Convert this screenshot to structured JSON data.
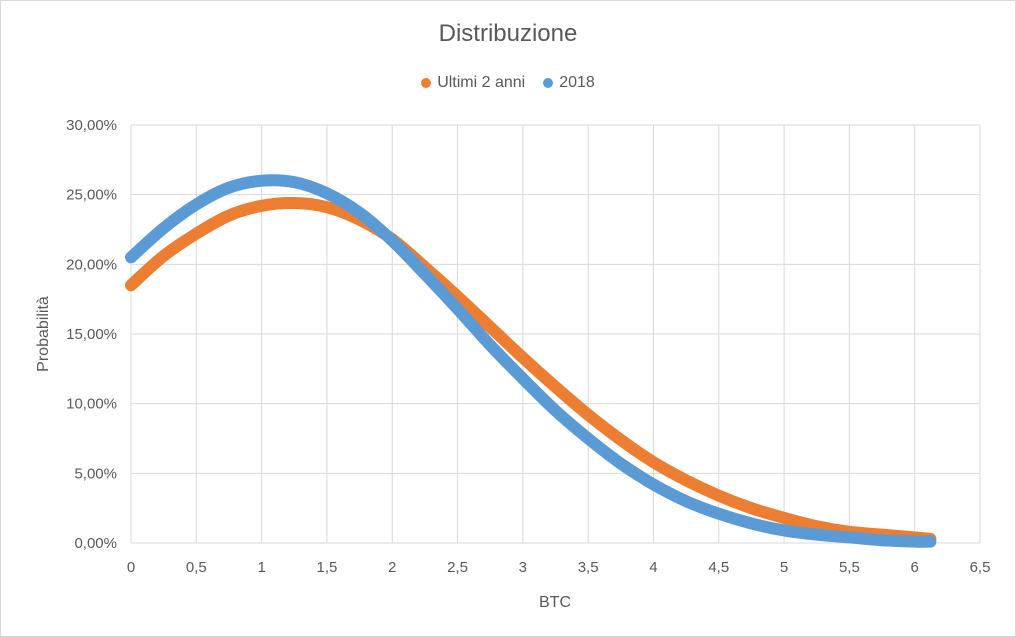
{
  "chart_data": {
    "type": "line",
    "title": "Distribuzione",
    "xlabel": "BTC",
    "ylabel": "Probabilità",
    "xlim": [
      0,
      6.5
    ],
    "ylim": [
      0,
      0.3
    ],
    "x_ticks": [
      "0",
      "0,5",
      "1",
      "1,5",
      "2",
      "2,5",
      "3",
      "3,5",
      "4",
      "4,5",
      "5",
      "5,5",
      "6",
      "6,5"
    ],
    "y_ticks": [
      "0,00%",
      "5,00%",
      "10,00%",
      "15,00%",
      "20,00%",
      "25,00%",
      "30,00%"
    ],
    "grid": true,
    "legend_position": "top",
    "x": [
      0,
      0.25,
      0.5,
      0.75,
      1,
      1.25,
      1.5,
      1.75,
      2,
      2.25,
      2.5,
      2.75,
      3,
      3.25,
      3.5,
      3.75,
      4,
      4.25,
      4.5,
      4.75,
      5,
      5.25,
      5.5,
      5.75,
      6,
      6.12
    ],
    "series": [
      {
        "name": "Ultimi 2 anni",
        "color": "#ED7D31",
        "values": [
          0.185,
          0.206,
          0.222,
          0.235,
          0.242,
          0.244,
          0.241,
          0.232,
          0.218,
          0.198,
          0.177,
          0.155,
          0.133,
          0.112,
          0.092,
          0.074,
          0.058,
          0.045,
          0.034,
          0.025,
          0.018,
          0.012,
          0.008,
          0.006,
          0.004,
          0.003
        ]
      },
      {
        "name": "2018",
        "color": "#5B9BD5",
        "values": [
          0.205,
          0.226,
          0.243,
          0.255,
          0.26,
          0.259,
          0.251,
          0.237,
          0.217,
          0.193,
          0.168,
          0.142,
          0.118,
          0.095,
          0.075,
          0.057,
          0.042,
          0.03,
          0.021,
          0.014,
          0.009,
          0.006,
          0.004,
          0.002,
          0.001,
          0.001
        ]
      }
    ]
  }
}
